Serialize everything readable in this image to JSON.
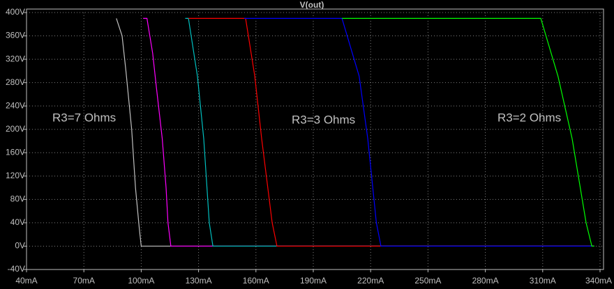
{
  "chart_data": {
    "type": "line",
    "title": "V(out)",
    "title_color": "#00c000",
    "xlim": [
      40,
      340
    ],
    "ylim": [
      -40,
      400
    ],
    "xticks": [
      {
        "value": 40,
        "label": "40mA"
      },
      {
        "value": 70,
        "label": "70mA"
      },
      {
        "value": 100,
        "label": "100mA"
      },
      {
        "value": 130,
        "label": "130mA"
      },
      {
        "value": 160,
        "label": "160mA"
      },
      {
        "value": 190,
        "label": "190mA"
      },
      {
        "value": 220,
        "label": "220mA"
      },
      {
        "value": 250,
        "label": "250mA"
      },
      {
        "value": 280,
        "label": "280mA"
      },
      {
        "value": 310,
        "label": "310mA"
      },
      {
        "value": 340,
        "label": "340mA"
      }
    ],
    "yticks": [
      {
        "value": -40,
        "label": "-40V"
      },
      {
        "value": 0,
        "label": "0V"
      },
      {
        "value": 40,
        "label": "40V"
      },
      {
        "value": 80,
        "label": "80V"
      },
      {
        "value": 120,
        "label": "120V"
      },
      {
        "value": 160,
        "label": "160V"
      },
      {
        "value": 200,
        "label": "200V"
      },
      {
        "value": 240,
        "label": "240V"
      },
      {
        "value": 280,
        "label": "280V"
      },
      {
        "value": 320,
        "label": "320V"
      },
      {
        "value": 360,
        "label": "360V"
      },
      {
        "value": 400,
        "label": "400V"
      }
    ],
    "grid": true,
    "series": [
      {
        "color": "#c0c0c0",
        "x": [
          87,
          90,
          92,
          95,
          97,
          99,
          100,
          337
        ],
        "values": [
          390,
          360,
          300,
          200,
          100,
          30,
          0,
          0
        ]
      },
      {
        "color": "#ff00ff",
        "x": [
          101,
          103,
          106,
          108,
          111,
          113,
          114,
          115.5,
          337
        ],
        "values": [
          390,
          390,
          330,
          270,
          184,
          100,
          40,
          0,
          0
        ]
      },
      {
        "color": "#00c0c0",
        "x": [
          123,
          124.7,
          129.4,
          132.7,
          135.6,
          137.5,
          337
        ],
        "values": [
          390,
          390,
          291,
          184,
          40,
          0,
          0
        ]
      },
      {
        "color": "#ff0000",
        "x": [
          124.7,
          154.6,
          159.4,
          163,
          168.5,
          171,
          337
        ],
        "values": [
          390,
          390,
          291,
          184,
          40,
          0,
          0
        ]
      },
      {
        "color": "#0000ff",
        "x": [
          153.9,
          205,
          214,
          218.5,
          223,
          225.4,
          337
        ],
        "values": [
          390,
          390,
          291,
          184,
          40,
          0,
          0
        ]
      },
      {
        "color": "#00ff00",
        "x": [
          205,
          309,
          318,
          325.4,
          332.7,
          335.7,
          337
        ],
        "values": [
          390,
          390,
          291,
          184,
          40,
          0,
          0
        ]
      }
    ],
    "annotations": [
      {
        "text": "R3=7 Ohms",
        "color": "#c0c0c0"
      },
      {
        "text": "R3=3 Ohms",
        "color": "#1e64ff"
      },
      {
        "text": "R3=2 Ohms",
        "color": "#00ff00"
      }
    ]
  }
}
